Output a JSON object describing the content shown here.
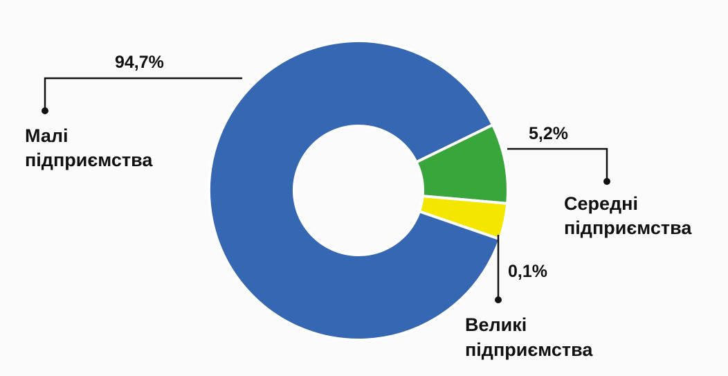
{
  "chart_data": {
    "type": "pie",
    "variant": "donut",
    "legend": "none",
    "slices": [
      {
        "value_label": "94,7%",
        "label_line1": "Малі",
        "label_line2": "підприємства",
        "color": "#3667b3"
      },
      {
        "value_label": "5,2%",
        "label_line1": "Середні",
        "label_line2": "підприємства",
        "color": "#38a63a"
      },
      {
        "value_label": "0,1%",
        "label_line1": "Великі",
        "label_line2": "підприємства",
        "color": "#f5e600"
      }
    ]
  },
  "colors": {
    "background": "#fbfbfb",
    "text": "#111111",
    "separator": "#ffffff"
  }
}
